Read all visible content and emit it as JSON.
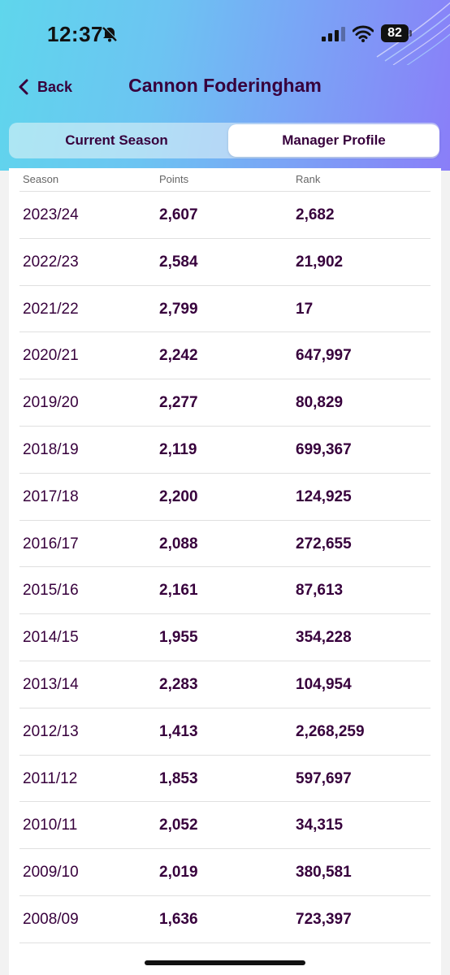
{
  "status_bar": {
    "time": "12:37",
    "battery": "82"
  },
  "nav": {
    "back_label": "Back",
    "title": "Cannon Foderingham"
  },
  "tabs": [
    {
      "label": "Current Season",
      "selected": false
    },
    {
      "label": "Manager Profile",
      "selected": true
    }
  ],
  "table": {
    "headers": {
      "season": "Season",
      "points": "Points",
      "rank": "Rank"
    },
    "rows": [
      {
        "season": "2023/24",
        "points": "2,607",
        "rank": "2,682"
      },
      {
        "season": "2022/23",
        "points": "2,584",
        "rank": "21,902"
      },
      {
        "season": "2021/22",
        "points": "2,799",
        "rank": "17"
      },
      {
        "season": "2020/21",
        "points": "2,242",
        "rank": "647,997"
      },
      {
        "season": "2019/20",
        "points": "2,277",
        "rank": "80,829"
      },
      {
        "season": "2018/19",
        "points": "2,119",
        "rank": "699,367"
      },
      {
        "season": "2017/18",
        "points": "2,200",
        "rank": "124,925"
      },
      {
        "season": "2016/17",
        "points": "2,088",
        "rank": "272,655"
      },
      {
        "season": "2015/16",
        "points": "2,161",
        "rank": "87,613"
      },
      {
        "season": "2014/15",
        "points": "1,955",
        "rank": "354,228"
      },
      {
        "season": "2013/14",
        "points": "2,283",
        "rank": "104,954"
      },
      {
        "season": "2012/13",
        "points": "1,413",
        "rank": "2,268,259"
      },
      {
        "season": "2011/12",
        "points": "1,853",
        "rank": "597,697"
      },
      {
        "season": "2010/11",
        "points": "2,052",
        "rank": "34,315"
      },
      {
        "season": "2009/10",
        "points": "2,019",
        "rank": "380,581"
      },
      {
        "season": "2008/09",
        "points": "1,636",
        "rank": "723,397"
      }
    ]
  },
  "colors": {
    "brand_text": "#37003c",
    "header_gradient_start": "#5fd6ec",
    "header_gradient_end": "#8a7ef8"
  }
}
